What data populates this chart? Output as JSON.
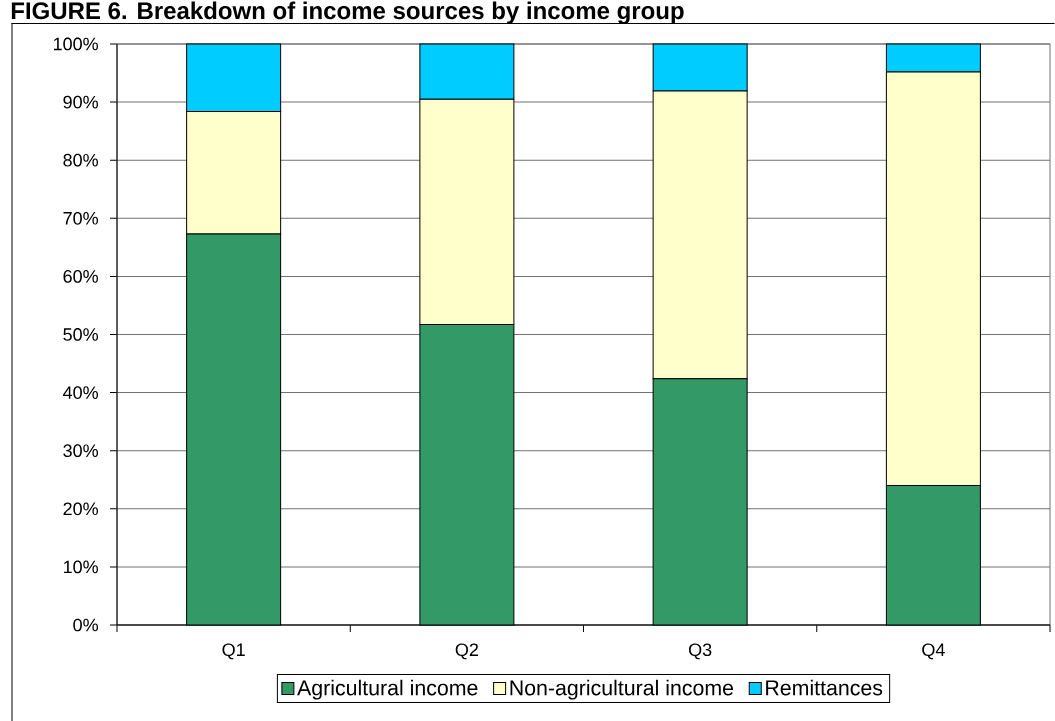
{
  "chart_data": {
    "type": "bar",
    "title": "FIGURE 6. Breakdown of income sources by income group",
    "categories": [
      "Q1",
      "Q2",
      "Q3",
      "Q4"
    ],
    "stacked": true,
    "series": [
      {
        "name": "Agricultural income",
        "color": "#339966",
        "values": [
          67.3,
          51.7,
          42.4,
          24.0
        ]
      },
      {
        "name": "Non-agricultural income",
        "color": "#ffffcc",
        "values": [
          21.1,
          38.8,
          49.5,
          71.2
        ]
      },
      {
        "name": "Remittances",
        "color": "#00ccff",
        "values": [
          11.6,
          9.5,
          8.1,
          4.8
        ]
      }
    ],
    "ylim": [
      0,
      100
    ],
    "yticks": [
      {
        "value": 0,
        "label": "0%"
      },
      {
        "value": 10,
        "label": "10%"
      },
      {
        "value": 20,
        "label": "20%"
      },
      {
        "value": 30,
        "label": "30%"
      },
      {
        "value": 40,
        "label": "40%"
      },
      {
        "value": 50,
        "label": "50%"
      },
      {
        "value": 60,
        "label": "60%"
      },
      {
        "value": 70,
        "label": "70%"
      },
      {
        "value": 80,
        "label": "80%"
      },
      {
        "value": 90,
        "label": "90%"
      },
      {
        "value": 100,
        "label": "100%"
      }
    ],
    "grid": "y",
    "legend": "bottom"
  }
}
